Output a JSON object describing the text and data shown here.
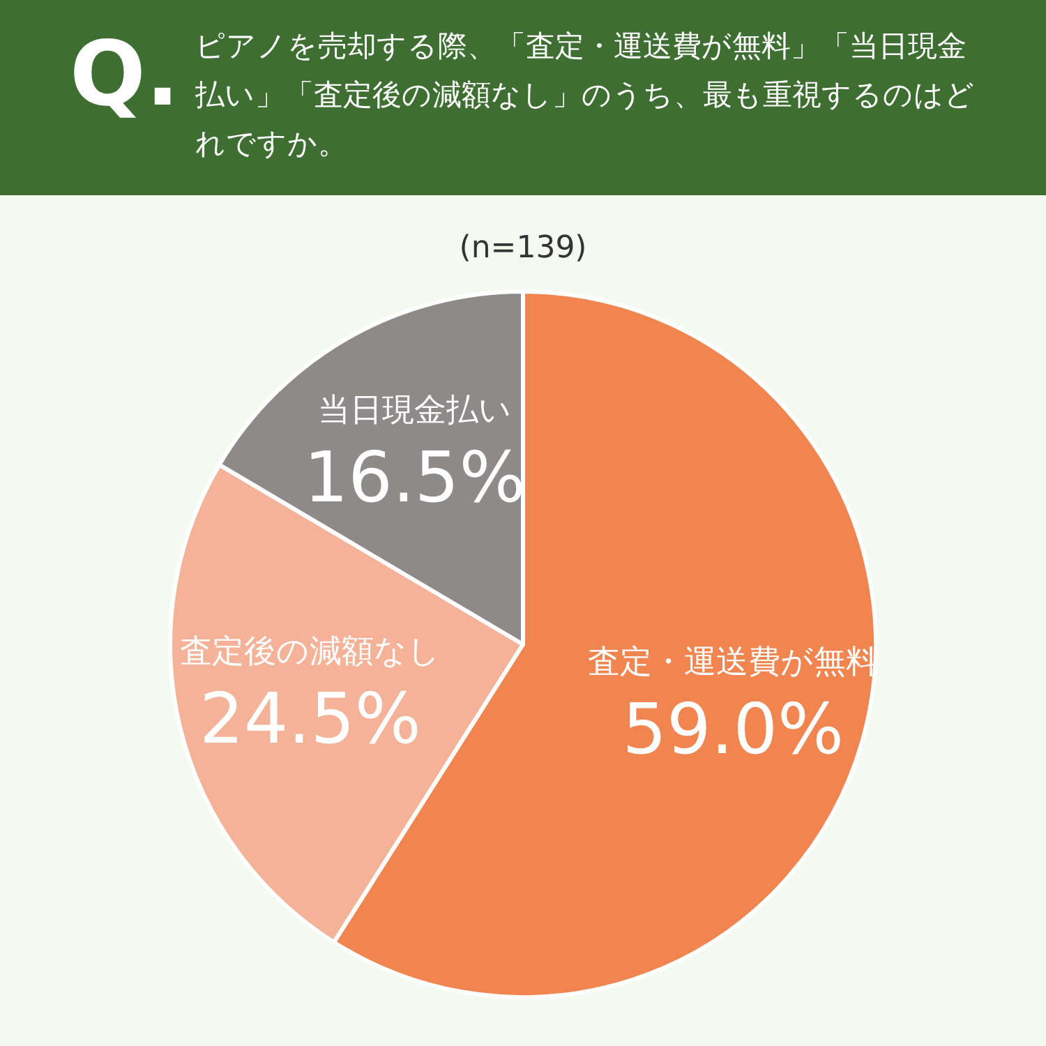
{
  "chart_data": {
    "type": "pie",
    "title": "ピアノを売却する際、「査定・運送費が無料」「当日現金払い」「査定後の減額なし」のうち、最も重視するのはどれですか。",
    "subtitle": "(n=139)",
    "annotations": [
      "Q."
    ],
    "categories": [
      "査定・運送費が無料",
      "査定後の減額なし",
      "当日現金払い"
    ],
    "values": [
      59.0,
      24.5,
      16.5
    ],
    "colors": [
      "#f0854f",
      "#f4b398",
      "#8e8a8a"
    ],
    "value_labels": [
      "59.0%",
      "24.5%",
      "16.5%"
    ]
  }
}
